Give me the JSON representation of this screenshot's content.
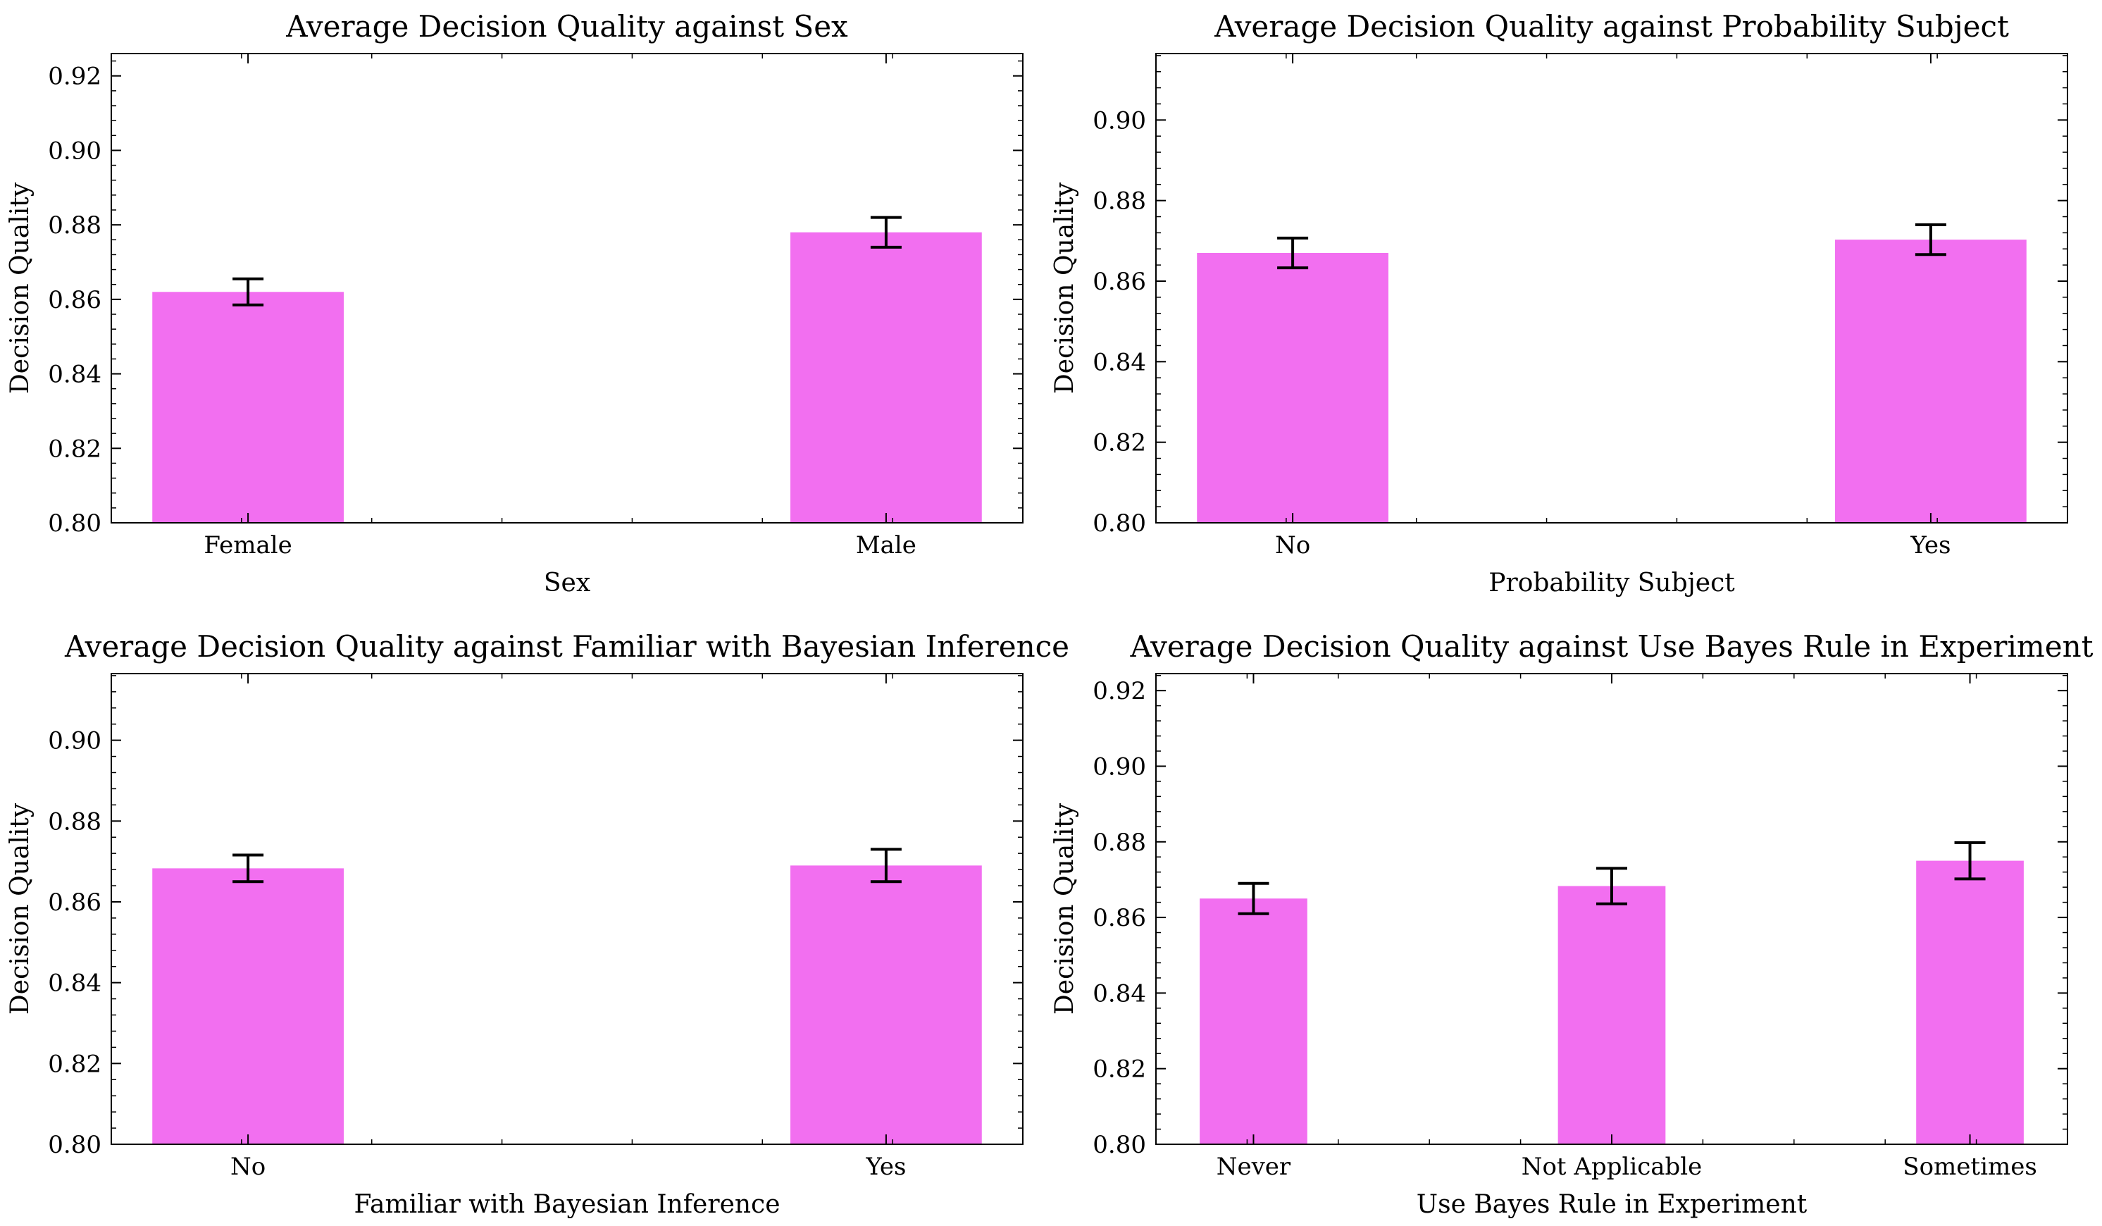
{
  "colors": {
    "bar": "#f26ff0",
    "errorbar": "#000000",
    "axes": "#000000"
  },
  "chart_data": [
    {
      "type": "bar",
      "title": "Average Decision Quality against Sex",
      "xlabel": "Sex",
      "ylabel": "Decision Quality",
      "categories": [
        "Female",
        "Male"
      ],
      "values": [
        0.862,
        0.878
      ],
      "errors": [
        0.0035,
        0.004
      ],
      "ylim": [
        0.8,
        0.926
      ],
      "yticks": [
        "0.80",
        "0.82",
        "0.84",
        "0.86",
        "0.88",
        "0.90",
        "0.92"
      ],
      "grid": false,
      "legend": "none"
    },
    {
      "type": "bar",
      "title": "Average Decision Quality against Probability Subject",
      "xlabel": "Probability Subject",
      "ylabel": "Decision Quality",
      "categories": [
        "No",
        "Yes"
      ],
      "values": [
        0.867,
        0.8703
      ],
      "errors": [
        0.0037,
        0.0037
      ],
      "ylim": [
        0.8,
        0.9165
      ],
      "yticks": [
        "0.80",
        "0.82",
        "0.84",
        "0.86",
        "0.88",
        "0.90"
      ],
      "grid": false,
      "legend": "none"
    },
    {
      "type": "bar",
      "title": "Average Decision Quality against Familiar with Bayesian Inference",
      "xlabel": "Familiar with Bayesian Inference",
      "ylabel": "Decision Quality",
      "categories": [
        "No",
        "Yes"
      ],
      "values": [
        0.8683,
        0.869
      ],
      "errors": [
        0.0033,
        0.004
      ],
      "ylim": [
        0.8,
        0.9165
      ],
      "yticks": [
        "0.80",
        "0.82",
        "0.84",
        "0.86",
        "0.88",
        "0.90"
      ],
      "grid": false,
      "legend": "none"
    },
    {
      "type": "bar",
      "title": "Average Decision Quality against Use Bayes Rule in Experiment",
      "xlabel": "Use Bayes Rule in Experiment",
      "ylabel": "Decision Quality",
      "categories": [
        "Never",
        "Not Applicable",
        "Sometimes"
      ],
      "values": [
        0.865,
        0.8683,
        0.875
      ],
      "errors": [
        0.004,
        0.0047,
        0.0048
      ],
      "ylim": [
        0.8,
        0.9245
      ],
      "yticks": [
        "0.80",
        "0.82",
        "0.84",
        "0.86",
        "0.88",
        "0.90",
        "0.92"
      ],
      "grid": false,
      "legend": "none"
    }
  ]
}
